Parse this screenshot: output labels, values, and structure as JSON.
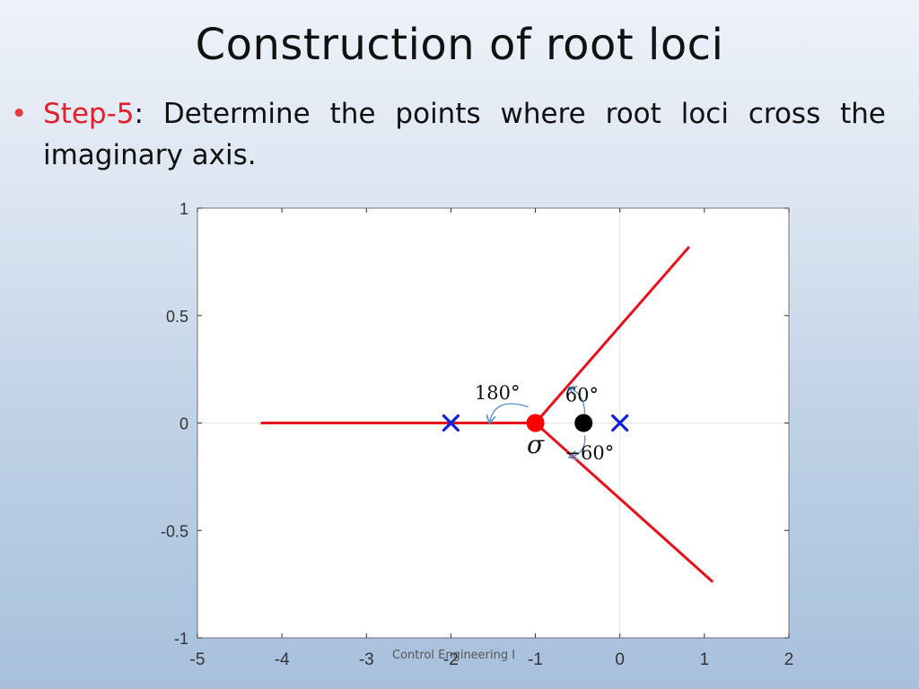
{
  "slide": {
    "title": "Construction of root loci",
    "step_label": "Step-5",
    "step_text": ": Determine the points where root loci cross the imaginary axis.",
    "footer": "Control Engineering I"
  },
  "colors": {
    "step_label": "#e41e2a",
    "locus": "#e8101a",
    "poles": "#1220d8",
    "centroid": "#ff0000",
    "zero": "#000000",
    "angle_arrows": "#5b8fc7"
  },
  "icons": {
    "bullet": "bullet-dot-icon",
    "pole": "x-cross-icon",
    "zero": "filled-circle-icon",
    "centroid": "filled-circle-icon"
  },
  "chart_data": {
    "type": "line",
    "xlim": [
      -5,
      2
    ],
    "ylim": [
      -1,
      1
    ],
    "x_ticks": [
      -5,
      -4,
      -3,
      -2,
      -1,
      0,
      1,
      2
    ],
    "y_ticks": [
      1,
      0.5,
      0,
      -0.5,
      -1
    ],
    "x_tick_labels": [
      "-5",
      "-4",
      "-3",
      "-2",
      "-1",
      "0",
      "1",
      "2"
    ],
    "y_tick_labels": [
      "1",
      "0.5",
      "0",
      "-0.5",
      "-1"
    ],
    "grid": "axes-only",
    "series": [
      {
        "x": [
          -4.25,
          -1
        ],
        "y": [
          0,
          0
        ]
      },
      {
        "x": [
          -1,
          0.82
        ],
        "y": [
          0,
          0.82
        ]
      },
      {
        "x": [
          -1,
          1.1
        ],
        "y": [
          0,
          -0.74
        ]
      }
    ],
    "poles": [
      {
        "x": -2,
        "y": 0
      },
      {
        "x": 0,
        "y": 0
      }
    ],
    "zeros": [
      {
        "x": -0.43,
        "y": 0
      }
    ],
    "centroid": {
      "x": -1,
      "y": 0
    },
    "annotations": [
      {
        "text": "180°",
        "x": -1.45,
        "y": 0.14
      },
      {
        "text": "60°",
        "x": -0.45,
        "y": 0.13
      },
      {
        "text": "−60°",
        "x": -0.36,
        "y": -0.14
      },
      {
        "text": "σ",
        "x": -1,
        "y": -0.11
      }
    ]
  }
}
